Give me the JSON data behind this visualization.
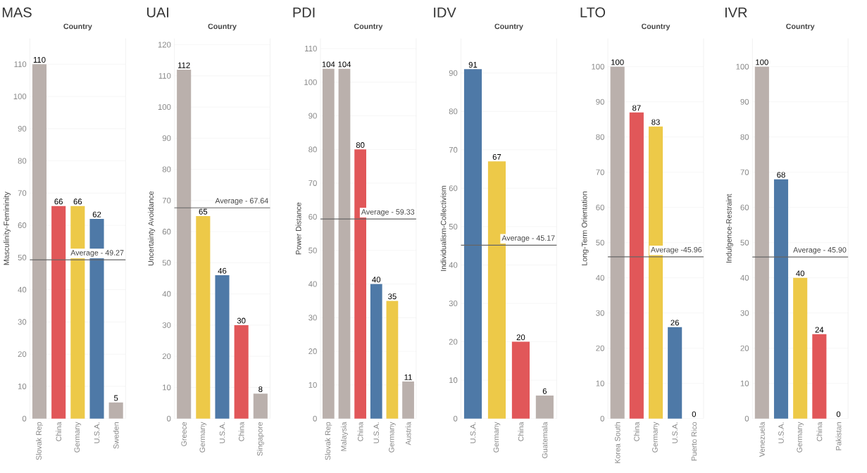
{
  "chart_data": [
    {
      "type": "bar",
      "title": "MAS",
      "xlabel": "Country",
      "ylabel": "Masculinity-Femininity",
      "categories": [
        "Slovak Rep",
        "China",
        "Germany",
        "U.S.A.",
        "Sweden"
      ],
      "values": [
        110,
        66,
        66,
        62,
        5
      ],
      "colors": [
        "#bab0ac",
        "#e15759",
        "#edc948",
        "#4e79a7",
        "#bab0ac"
      ],
      "ylim": [
        0,
        118
      ],
      "yticks": [
        0,
        10,
        20,
        30,
        40,
        50,
        60,
        70,
        80,
        90,
        100,
        110
      ],
      "grid": "y",
      "data_labels": true,
      "ref_lines": [
        {
          "axis": "y",
          "value": 49.27,
          "label": "Average - 49.27"
        }
      ]
    },
    {
      "type": "bar",
      "title": "UAI",
      "xlabel": "Country",
      "ylabel": "Uncertainty Avoidance",
      "categories": [
        "Greece",
        "Germany",
        "U.S.A.",
        "China",
        "Singapore"
      ],
      "values": [
        112,
        65,
        46,
        30,
        8
      ],
      "colors": [
        "#bab0ac",
        "#edc948",
        "#4e79a7",
        "#e15759",
        "#bab0ac"
      ],
      "ylim": [
        0,
        122
      ],
      "yticks": [
        0,
        10,
        20,
        30,
        40,
        50,
        60,
        70,
        80,
        90,
        100,
        110,
        120
      ],
      "grid": "y",
      "data_labels": true,
      "ref_lines": [
        {
          "axis": "y",
          "value": 67.64,
          "label": "Average - 67.64"
        }
      ]
    },
    {
      "type": "bar",
      "title": "PDI",
      "xlabel": "Country",
      "ylabel": "Power Distance",
      "categories": [
        "Slovak Rep",
        "Malaysia",
        "China",
        "U.S.A.",
        "Germany",
        "Austria"
      ],
      "values": [
        104,
        104,
        80,
        40,
        35,
        11
      ],
      "colors": [
        "#bab0ac",
        "#bab0ac",
        "#e15759",
        "#4e79a7",
        "#edc948",
        "#bab0ac"
      ],
      "ylim": [
        0,
        113
      ],
      "yticks": [
        0,
        10,
        20,
        30,
        40,
        50,
        60,
        70,
        80,
        90,
        100,
        110
      ],
      "grid": "y",
      "data_labels": true,
      "ref_lines": [
        {
          "axis": "y",
          "value": 59.33,
          "label": "Average - 59.33"
        }
      ]
    },
    {
      "type": "bar",
      "title": "IDV",
      "xlabel": "Country",
      "ylabel": "Individualism-Collectivism",
      "categories": [
        "U.S.A.",
        "Germany",
        "China",
        "Guatemala"
      ],
      "values": [
        91,
        67,
        20,
        6
      ],
      "colors": [
        "#4e79a7",
        "#edc948",
        "#e15759",
        "#bab0ac"
      ],
      "ylim": [
        0,
        99
      ],
      "yticks": [
        0,
        10,
        20,
        30,
        40,
        50,
        60,
        70,
        80,
        90
      ],
      "grid": "y",
      "data_labels": true,
      "ref_lines": [
        {
          "axis": "y",
          "value": 45.17,
          "label": "Average - 45.17"
        }
      ]
    },
    {
      "type": "bar",
      "title": "LTO",
      "xlabel": "Country",
      "ylabel": "Long-Term Orientation",
      "categories": [
        "Korea South",
        "China",
        "Germany",
        "U.S.A.",
        "Puerto Rico"
      ],
      "values": [
        100,
        87,
        83,
        26,
        0
      ],
      "colors": [
        "#bab0ac",
        "#e15759",
        "#edc948",
        "#4e79a7",
        "#bab0ac"
      ],
      "ylim": [
        0,
        108
      ],
      "yticks": [
        0,
        10,
        20,
        30,
        40,
        50,
        60,
        70,
        80,
        90,
        100
      ],
      "grid": "y",
      "data_labels": true,
      "ref_lines": [
        {
          "axis": "y",
          "value": 45.96,
          "label": "Average -45.96"
        }
      ]
    },
    {
      "type": "bar",
      "title": "IVR",
      "xlabel": "Country",
      "ylabel": "Indulgence-Restraint",
      "categories": [
        "Venezuela",
        "U.S.A.",
        "Germany",
        "China",
        "Pakistan"
      ],
      "values": [
        100,
        68,
        40,
        24,
        0
      ],
      "colors": [
        "#bab0ac",
        "#4e79a7",
        "#edc948",
        "#e15759",
        "#bab0ac"
      ],
      "ylim": [
        0,
        108
      ],
      "yticks": [
        0,
        10,
        20,
        30,
        40,
        50,
        60,
        70,
        80,
        90,
        100
      ],
      "grid": "y",
      "data_labels": true,
      "ref_lines": [
        {
          "axis": "y",
          "value": 45.9,
          "label": "Average - 45.90"
        }
      ]
    }
  ]
}
